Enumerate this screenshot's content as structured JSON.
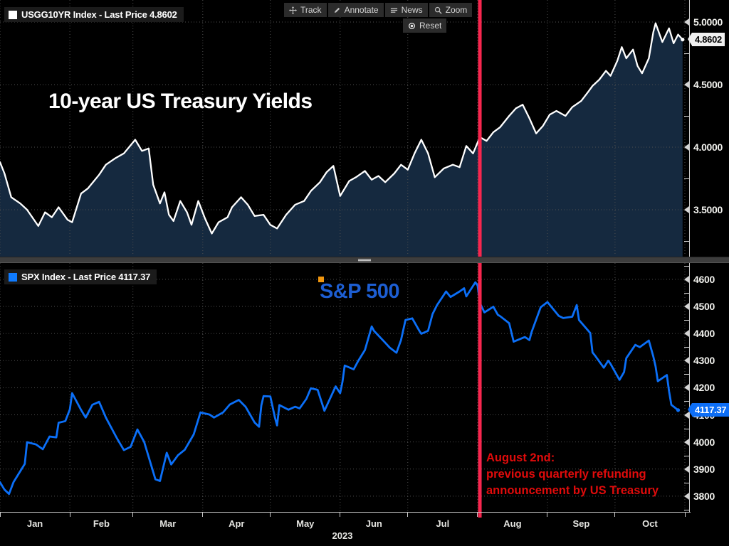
{
  "toolbar": {
    "track": "Track",
    "annotate": "Annotate",
    "news": "News",
    "zoom": "Zoom",
    "reset": "Reset"
  },
  "top_panel": {
    "legend": "USGG10YR Index - Last Price 4.8602",
    "title": "10-year US Treasury Yields"
  },
  "bottom_panel": {
    "legend": "SPX Index - Last Price 4117.37",
    "label": "S&P 500",
    "annotation": {
      "lines": [
        "August 2nd:",
        "previous quarterly refunding",
        "announcement by US Treasury"
      ]
    }
  },
  "xaxis": {
    "boundaries": [
      0,
      31,
      59,
      90,
      120,
      151,
      181,
      212,
      243,
      273,
      304
    ],
    "months": [
      "Jan",
      "Feb",
      "Mar",
      "Apr",
      "May",
      "Jun",
      "Jul",
      "Aug",
      "Sep",
      "Oct"
    ],
    "year_label": "2023",
    "total_days": 304
  },
  "colors": {
    "background": "#000000",
    "grid": "#4f4f4f",
    "axis": "#c8c8c8",
    "treasury_line": "#ffffff",
    "treasury_fill": "#15293f",
    "spx_line": "#0b6ff7",
    "spx_label_text": "#1d5ed2",
    "event_line": "#f8264e",
    "annotation_red": "#e00b0b",
    "badge_top_bg": "#f0f0f0",
    "badge_top_text": "#000000",
    "badge_bottom_bg": "#0d6ef5",
    "badge_bottom_text": "#ffffff",
    "swatch_top": "#ffffff",
    "swatch_bottom": "#0f7bff",
    "orange_handle": "#f0960f"
  },
  "chart_data": [
    {
      "type": "area",
      "name": "USGG10YR Index",
      "title": "10-year US Treasury Yields",
      "last_price": 4.8602,
      "badge_label": "4.8602",
      "ylim": [
        3.131,
        5.176
      ],
      "yticks": {
        "values": [
          5.0,
          4.5,
          4.0,
          3.5
        ],
        "labels": [
          "5.0000",
          "4.5000",
          "4.0000",
          "3.5000"
        ]
      },
      "minor_ticks": [
        4.75,
        4.25,
        3.75,
        3.25
      ],
      "event_day": 213,
      "points": [
        [
          0,
          3.88
        ],
        [
          2,
          3.79
        ],
        [
          5,
          3.6
        ],
        [
          9,
          3.55
        ],
        [
          12,
          3.5
        ],
        [
          17,
          3.37
        ],
        [
          20,
          3.48
        ],
        [
          23,
          3.44
        ],
        [
          26,
          3.52
        ],
        [
          30,
          3.42
        ],
        [
          32,
          3.4
        ],
        [
          36,
          3.63
        ],
        [
          39,
          3.67
        ],
        [
          44,
          3.78
        ],
        [
          47,
          3.86
        ],
        [
          51,
          3.91
        ],
        [
          55,
          3.95
        ],
        [
          60,
          4.06
        ],
        [
          63,
          3.97
        ],
        [
          66,
          3.99
        ],
        [
          68,
          3.7
        ],
        [
          71,
          3.55
        ],
        [
          73,
          3.64
        ],
        [
          75,
          3.46
        ],
        [
          77,
          3.41
        ],
        [
          80,
          3.57
        ],
        [
          83,
          3.48
        ],
        [
          85,
          3.38
        ],
        [
          88,
          3.57
        ],
        [
          91,
          3.43
        ],
        [
          94,
          3.31
        ],
        [
          97,
          3.4
        ],
        [
          101,
          3.44
        ],
        [
          103,
          3.52
        ],
        [
          107,
          3.6
        ],
        [
          110,
          3.54
        ],
        [
          113,
          3.45
        ],
        [
          117,
          3.46
        ],
        [
          120,
          3.38
        ],
        [
          123,
          3.35
        ],
        [
          127,
          3.46
        ],
        [
          131,
          3.54
        ],
        [
          135,
          3.57
        ],
        [
          138,
          3.65
        ],
        [
          142,
          3.72
        ],
        [
          145,
          3.8
        ],
        [
          148,
          3.85
        ],
        [
          151,
          3.61
        ],
        [
          155,
          3.73
        ],
        [
          158,
          3.76
        ],
        [
          162,
          3.81
        ],
        [
          165,
          3.74
        ],
        [
          168,
          3.77
        ],
        [
          171,
          3.72
        ],
        [
          175,
          3.79
        ],
        [
          178,
          3.86
        ],
        [
          181,
          3.82
        ],
        [
          184,
          3.95
        ],
        [
          187,
          4.06
        ],
        [
          190,
          3.95
        ],
        [
          193,
          3.76
        ],
        [
          197,
          3.83
        ],
        [
          201,
          3.86
        ],
        [
          204,
          3.84
        ],
        [
          207,
          4.01
        ],
        [
          210,
          3.95
        ],
        [
          213,
          4.08
        ],
        [
          216,
          4.05
        ],
        [
          219,
          4.12
        ],
        [
          222,
          4.16
        ],
        [
          226,
          4.25
        ],
        [
          229,
          4.31
        ],
        [
          232,
          4.34
        ],
        [
          235,
          4.23
        ],
        [
          238,
          4.11
        ],
        [
          241,
          4.17
        ],
        [
          244,
          4.26
        ],
        [
          247,
          4.29
        ],
        [
          251,
          4.25
        ],
        [
          254,
          4.32
        ],
        [
          258,
          4.37
        ],
        [
          261,
          4.44
        ],
        [
          263,
          4.49
        ],
        [
          266,
          4.54
        ],
        [
          269,
          4.61
        ],
        [
          271,
          4.57
        ],
        [
          274,
          4.69
        ],
        [
          276,
          4.8
        ],
        [
          278,
          4.71
        ],
        [
          281,
          4.78
        ],
        [
          283,
          4.65
        ],
        [
          285,
          4.59
        ],
        [
          288,
          4.71
        ],
        [
          290,
          4.92
        ],
        [
          291,
          4.99
        ],
        [
          293,
          4.89
        ],
        [
          294,
          4.84
        ],
        [
          297,
          4.95
        ],
        [
          299,
          4.83
        ],
        [
          301,
          4.9
        ],
        [
          303,
          4.8602
        ]
      ]
    },
    {
      "type": "line",
      "name": "SPX Index",
      "label": "S&P 500",
      "last_price": 4117.37,
      "badge_label": "4117.37",
      "ylim": [
        3742,
        4660
      ],
      "yticks": {
        "values": [
          4600,
          4500,
          4400,
          4300,
          4200,
          4100,
          4000,
          3900,
          3800
        ],
        "labels": [
          "4600",
          "4500",
          "4400",
          "4300",
          "4200",
          "4100",
          "4000",
          "3900",
          "3800"
        ]
      },
      "minor_ticks": [
        4650,
        4550,
        4450,
        4350,
        4250,
        4150,
        4050,
        3950,
        3850,
        3750
      ],
      "event_day": 213,
      "points": [
        [
          0,
          3851
        ],
        [
          2,
          3824
        ],
        [
          4,
          3808
        ],
        [
          6,
          3852
        ],
        [
          9,
          3892
        ],
        [
          11,
          3919
        ],
        [
          12,
          3999
        ],
        [
          16,
          3991
        ],
        [
          19,
          3973
        ],
        [
          22,
          4020
        ],
        [
          25,
          4017
        ],
        [
          26,
          4071
        ],
        [
          29,
          4077
        ],
        [
          31,
          4120
        ],
        [
          32,
          4180
        ],
        [
          36,
          4118
        ],
        [
          38,
          4090
        ],
        [
          41,
          4137
        ],
        [
          44,
          4148
        ],
        [
          47,
          4090
        ],
        [
          52,
          4012
        ],
        [
          55,
          3970
        ],
        [
          58,
          3982
        ],
        [
          61,
          4046
        ],
        [
          64,
          4000
        ],
        [
          69,
          3862
        ],
        [
          71,
          3856
        ],
        [
          74,
          3960
        ],
        [
          76,
          3917
        ],
        [
          79,
          3951
        ],
        [
          82,
          3971
        ],
        [
          86,
          4028
        ],
        [
          89,
          4109
        ],
        [
          93,
          4101
        ],
        [
          95,
          4090
        ],
        [
          99,
          4109
        ],
        [
          102,
          4138
        ],
        [
          106,
          4155
        ],
        [
          109,
          4130
        ],
        [
          113,
          4072
        ],
        [
          115,
          4056
        ],
        [
          116,
          4135
        ],
        [
          117,
          4169
        ],
        [
          120,
          4168
        ],
        [
          122,
          4091
        ],
        [
          123,
          4061
        ],
        [
          124,
          4136
        ],
        [
          128,
          4119
        ],
        [
          131,
          4130
        ],
        [
          133,
          4124
        ],
        [
          136,
          4159
        ],
        [
          138,
          4198
        ],
        [
          141,
          4192
        ],
        [
          144,
          4115
        ],
        [
          146,
          4151
        ],
        [
          149,
          4205
        ],
        [
          151,
          4180
        ],
        [
          152,
          4221
        ],
        [
          153,
          4282
        ],
        [
          157,
          4268
        ],
        [
          159,
          4299
        ],
        [
          162,
          4339
        ],
        [
          165,
          4426
        ],
        [
          166,
          4410
        ],
        [
          171,
          4366
        ],
        [
          173,
          4348
        ],
        [
          176,
          4329
        ],
        [
          178,
          4376
        ],
        [
          180,
          4450
        ],
        [
          183,
          4456
        ],
        [
          186,
          4412
        ],
        [
          187,
          4399
        ],
        [
          190,
          4410
        ],
        [
          192,
          4472
        ],
        [
          194,
          4505
        ],
        [
          198,
          4555
        ],
        [
          200,
          4535
        ],
        [
          204,
          4555
        ],
        [
          206,
          4567
        ],
        [
          207,
          4537
        ],
        [
          211,
          4589
        ],
        [
          212,
          4577
        ],
        [
          213,
          4513
        ],
        [
          215,
          4478
        ],
        [
          219,
          4499
        ],
        [
          221,
          4469
        ],
        [
          222,
          4464
        ],
        [
          226,
          4438
        ],
        [
          228,
          4370
        ],
        [
          233,
          4387
        ],
        [
          235,
          4376
        ],
        [
          236,
          4406
        ],
        [
          240,
          4497
        ],
        [
          243,
          4516
        ],
        [
          248,
          4465
        ],
        [
          250,
          4457
        ],
        [
          254,
          4462
        ],
        [
          256,
          4505
        ],
        [
          257,
          4450
        ],
        [
          262,
          4402
        ],
        [
          263,
          4330
        ],
        [
          264,
          4320
        ],
        [
          268,
          4274
        ],
        [
          270,
          4300
        ],
        [
          271,
          4288
        ],
        [
          275,
          4229
        ],
        [
          277,
          4258
        ],
        [
          278,
          4309
        ],
        [
          282,
          4358
        ],
        [
          284,
          4350
        ],
        [
          288,
          4374
        ],
        [
          290,
          4315
        ],
        [
          291,
          4278
        ],
        [
          292,
          4224
        ],
        [
          296,
          4247
        ],
        [
          297,
          4187
        ],
        [
          298,
          4137
        ],
        [
          301,
          4117.37
        ]
      ]
    }
  ]
}
